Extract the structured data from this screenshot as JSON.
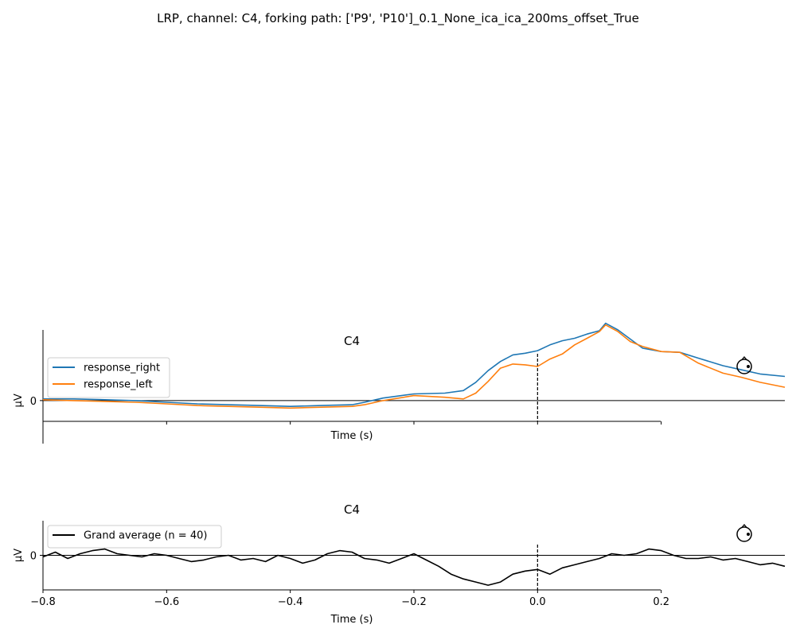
{
  "title": "LRP, channel: C4, forking path: ['P9', 'P10']_0.1_None_ica_ica_200ms_offset_True",
  "colors": {
    "response_right": "#1f77b4",
    "response_left": "#ff7f0e",
    "grand_average": "#000000"
  },
  "chart_data": [
    {
      "type": "line",
      "title": "C4",
      "xlabel": "Time (s)",
      "ylabel": "µV",
      "xlim": [
        -0.8,
        0.4
      ],
      "ylim": [
        -2.5,
        8.5
      ],
      "xticks": [
        -0.8,
        -0.6,
        -0.4,
        -0.2,
        0.0,
        0.2
      ],
      "xtick_labels": [
        "",
        "",
        "",
        "",
        "",
        ""
      ],
      "yticks": [
        0
      ],
      "ytick_labels": [
        "0"
      ],
      "zero_line": true,
      "event_line_x": 0.0,
      "legend_position": "upper-left",
      "series": [
        {
          "name": "response_right",
          "color": "#1f77b4",
          "x": [
            -0.8,
            -0.75,
            -0.7,
            -0.65,
            -0.6,
            -0.55,
            -0.5,
            -0.45,
            -0.4,
            -0.35,
            -0.3,
            -0.28,
            -0.25,
            -0.2,
            -0.15,
            -0.12,
            -0.1,
            -0.08,
            -0.06,
            -0.04,
            -0.02,
            0.0,
            0.02,
            0.04,
            0.06,
            0.08,
            0.1,
            0.11,
            0.13,
            0.15,
            0.17,
            0.2,
            0.23,
            0.26,
            0.3,
            0.33,
            0.36,
            0.4
          ],
          "y": [
            0.2,
            0.2,
            0.1,
            0.0,
            -0.2,
            -0.4,
            -0.5,
            -0.6,
            -0.7,
            -0.6,
            -0.5,
            -0.2,
            0.3,
            0.8,
            0.9,
            1.2,
            2.2,
            3.6,
            4.7,
            5.5,
            5.7,
            6.0,
            6.7,
            7.2,
            7.5,
            8.0,
            8.4,
            9.3,
            8.5,
            7.4,
            6.3,
            5.9,
            5.8,
            5.1,
            4.2,
            3.7,
            3.2,
            2.9
          ]
        },
        {
          "name": "response_left",
          "color": "#ff7f0e",
          "x": [
            -0.8,
            -0.75,
            -0.7,
            -0.65,
            -0.6,
            -0.55,
            -0.5,
            -0.45,
            -0.4,
            -0.35,
            -0.3,
            -0.28,
            -0.25,
            -0.2,
            -0.15,
            -0.12,
            -0.1,
            -0.08,
            -0.06,
            -0.04,
            -0.02,
            0.0,
            0.02,
            0.04,
            0.06,
            0.08,
            0.1,
            0.11,
            0.13,
            0.15,
            0.17,
            0.2,
            0.23,
            0.26,
            0.3,
            0.33,
            0.36,
            0.4
          ],
          "y": [
            0.1,
            0.0,
            -0.1,
            -0.2,
            -0.4,
            -0.6,
            -0.7,
            -0.8,
            -0.9,
            -0.8,
            -0.7,
            -0.5,
            0.0,
            0.6,
            0.4,
            0.2,
            0.9,
            2.3,
            3.9,
            4.4,
            4.3,
            4.1,
            5.0,
            5.6,
            6.7,
            7.5,
            8.3,
            9.1,
            8.3,
            7.1,
            6.5,
            5.9,
            5.8,
            4.5,
            3.3,
            2.8,
            2.2,
            1.6
          ]
        }
      ]
    },
    {
      "type": "line",
      "title": "C4",
      "xlabel": "Time (s)",
      "ylabel": "µV",
      "xlim": [
        -0.8,
        0.4
      ],
      "ylim": [
        -2.2,
        2.2
      ],
      "xticks": [
        -0.8,
        -0.6,
        -0.4,
        -0.2,
        0.0,
        0.2
      ],
      "xtick_labels": [
        "−0.8",
        "−0.6",
        "−0.4",
        "−0.2",
        "0.0",
        "0.2"
      ],
      "yticks": [
        0
      ],
      "ytick_labels": [
        "0"
      ],
      "zero_line": true,
      "event_line_x": 0.0,
      "legend_position": "upper-left",
      "series": [
        {
          "name": "Grand average (n = 40)",
          "color": "#000000",
          "x": [
            -0.8,
            -0.78,
            -0.76,
            -0.74,
            -0.72,
            -0.7,
            -0.68,
            -0.66,
            -0.64,
            -0.62,
            -0.6,
            -0.58,
            -0.56,
            -0.54,
            -0.52,
            -0.5,
            -0.48,
            -0.46,
            -0.44,
            -0.42,
            -0.4,
            -0.38,
            -0.36,
            -0.34,
            -0.32,
            -0.3,
            -0.28,
            -0.26,
            -0.24,
            -0.22,
            -0.2,
            -0.18,
            -0.16,
            -0.14,
            -0.12,
            -0.1,
            -0.08,
            -0.06,
            -0.04,
            -0.02,
            0.0,
            0.02,
            0.04,
            0.06,
            0.08,
            0.1,
            0.12,
            0.14,
            0.16,
            0.18,
            0.2,
            0.22,
            0.24,
            0.26,
            0.28,
            0.3,
            0.32,
            0.34,
            0.36,
            0.38,
            0.4
          ],
          "y": [
            -0.1,
            0.2,
            -0.2,
            0.1,
            0.3,
            0.4,
            0.1,
            0.0,
            -0.1,
            0.1,
            0.0,
            -0.2,
            -0.4,
            -0.3,
            -0.1,
            0.0,
            -0.3,
            -0.2,
            -0.4,
            0.0,
            -0.2,
            -0.5,
            -0.3,
            0.1,
            0.3,
            0.2,
            -0.2,
            -0.3,
            -0.5,
            -0.2,
            0.1,
            -0.3,
            -0.7,
            -1.2,
            -1.5,
            -1.7,
            -1.9,
            -1.7,
            -1.2,
            -1.0,
            -0.9,
            -1.2,
            -0.8,
            -0.6,
            -0.4,
            -0.2,
            0.1,
            0.0,
            0.1,
            0.4,
            0.3,
            0.0,
            -0.2,
            -0.2,
            -0.1,
            -0.3,
            -0.2,
            -0.4,
            -0.6,
            -0.5,
            -0.7
          ]
        }
      ]
    }
  ]
}
